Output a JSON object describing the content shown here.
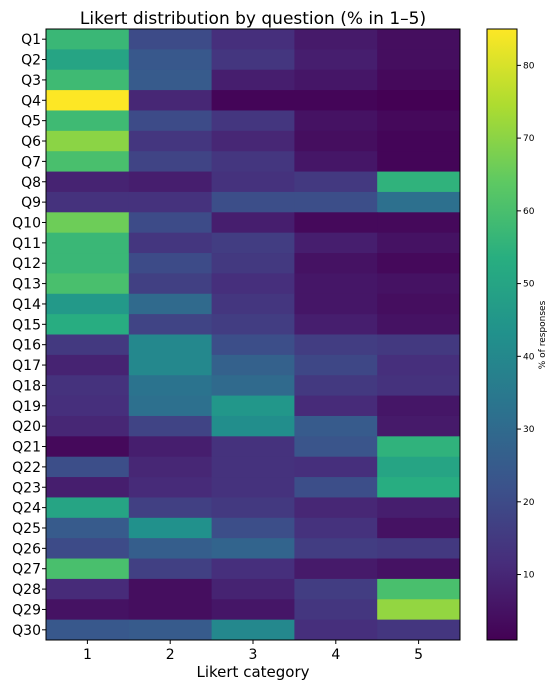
{
  "chart_data": {
    "type": "heatmap",
    "title": "Likert distribution by question (% in 1–5)",
    "xlabel": "Likert category",
    "ylabel": "",
    "colorbar_label": "% of responses",
    "colormap": "viridis",
    "color_range": [
      1,
      85
    ],
    "colorbar_ticks": [
      10,
      20,
      30,
      40,
      50,
      60,
      70,
      80
    ],
    "x": [
      "1",
      "2",
      "3",
      "4",
      "5"
    ],
    "y": [
      "Q1",
      "Q2",
      "Q3",
      "Q4",
      "Q5",
      "Q6",
      "Q7",
      "Q8",
      "Q9",
      "Q10",
      "Q11",
      "Q12",
      "Q13",
      "Q14",
      "Q15",
      "Q16",
      "Q17",
      "Q18",
      "Q19",
      "Q20",
      "Q21",
      "Q22",
      "Q23",
      "Q24",
      "Q25",
      "Q26",
      "Q27",
      "Q28",
      "Q29",
      "Q30"
    ],
    "values": [
      [
        57,
        20,
        12,
        7,
        4
      ],
      [
        50,
        24,
        14,
        8,
        4
      ],
      [
        58,
        25,
        8,
        6,
        3
      ],
      [
        85,
        10,
        2,
        2,
        1
      ],
      [
        58,
        20,
        14,
        5,
        3
      ],
      [
        70,
        14,
        10,
        4,
        2
      ],
      [
        60,
        18,
        14,
        6,
        2
      ],
      [
        9,
        8,
        13,
        15,
        55
      ],
      [
        13,
        13,
        21,
        21,
        32
      ],
      [
        66,
        20,
        8,
        3,
        3
      ],
      [
        57,
        14,
        16,
        8,
        5
      ],
      [
        57,
        20,
        15,
        5,
        3
      ],
      [
        60,
        17,
        12,
        6,
        5
      ],
      [
        46,
        30,
        14,
        6,
        4
      ],
      [
        53,
        18,
        16,
        8,
        5
      ],
      [
        15,
        40,
        21,
        16,
        15
      ],
      [
        9,
        40,
        27,
        19,
        12
      ],
      [
        13,
        33,
        30,
        15,
        13
      ],
      [
        12,
        32,
        45,
        11,
        6
      ],
      [
        10,
        18,
        42,
        25,
        7
      ],
      [
        3,
        8,
        13,
        23,
        55
      ],
      [
        21,
        10,
        13,
        12,
        50
      ],
      [
        8,
        11,
        13,
        21,
        53
      ],
      [
        50,
        17,
        15,
        10,
        8
      ],
      [
        25,
        43,
        21,
        13,
        5
      ],
      [
        20,
        26,
        28,
        16,
        15
      ],
      [
        60,
        17,
        12,
        7,
        5
      ],
      [
        11,
        4,
        9,
        16,
        60
      ],
      [
        5,
        4,
        6,
        14,
        71
      ],
      [
        24,
        25,
        40,
        12,
        14
      ]
    ]
  }
}
